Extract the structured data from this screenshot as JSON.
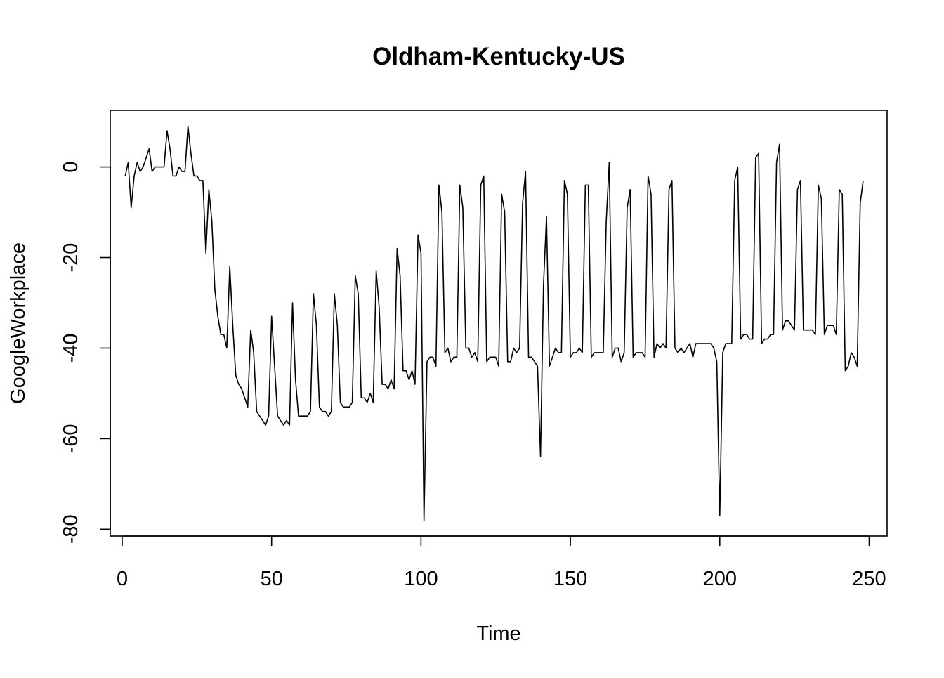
{
  "chart_data": {
    "type": "line",
    "title": "Oldham-Kentucky-US",
    "xlabel": "Time",
    "ylabel": "GoogleWorkplace",
    "xlim": [
      -4,
      256
    ],
    "ylim": [
      -81.5,
      12.5
    ],
    "x_ticks": [
      0,
      50,
      100,
      150,
      200,
      250
    ],
    "y_ticks": [
      -80,
      -60,
      -40,
      -20,
      0
    ],
    "grid": false,
    "legend": "none",
    "series": [
      {
        "color": "#000000",
        "x_start": 1,
        "values": [
          -2,
          1,
          -9,
          -2,
          1,
          -1,
          0,
          2,
          4,
          -1,
          0,
          0,
          0,
          0,
          8,
          4,
          -2,
          -2,
          0,
          -1,
          -1,
          9,
          3,
          -2,
          -2,
          -3,
          -3,
          -19,
          -5,
          -12,
          -27,
          -33,
          -37,
          -37,
          -40,
          -22,
          -35,
          -46,
          -48,
          -49,
          -51,
          -53,
          -36,
          -41,
          -54,
          -55,
          -56,
          -57,
          -55,
          -33,
          -44,
          -55,
          -56,
          -57,
          -56,
          -57,
          -30,
          -47,
          -55,
          -55,
          -55,
          -55,
          -54,
          -28,
          -35,
          -53,
          -54,
          -54,
          -55,
          -54,
          -28,
          -35,
          -52,
          -53,
          -53,
          -53,
          -52,
          -24,
          -28,
          -51,
          -51,
          -52,
          -50,
          -52,
          -23,
          -31,
          -48,
          -48,
          -49,
          -47,
          -49,
          -18,
          -24,
          -45,
          -45,
          -47,
          -45,
          -48,
          -15,
          -19,
          -78,
          -43,
          -42,
          -42,
          -44,
          -4,
          -10,
          -41,
          -40,
          -43,
          -42,
          -42,
          -4,
          -9,
          -40,
          -40,
          -42,
          -41,
          -43,
          -4,
          -2,
          -43,
          -42,
          -42,
          -42,
          -44,
          -6,
          -10,
          -43,
          -43,
          -40,
          -41,
          -40,
          -8,
          -1,
          -42,
          -42,
          -43,
          -44,
          -64,
          -26,
          -11,
          -44,
          -42,
          -40,
          -41,
          -41,
          -3,
          -6,
          -42,
          -41,
          -41,
          -40,
          -41,
          -4,
          -4,
          -42,
          -41,
          -41,
          -41,
          -41,
          -12,
          1,
          -42,
          -40,
          -40,
          -43,
          -41,
          -9,
          -5,
          -42,
          -41,
          -41,
          -41,
          -42,
          -2,
          -6,
          -42,
          -39,
          -40,
          -39,
          -40,
          -5,
          -3,
          -40,
          -41,
          -40,
          -41,
          -40,
          -39,
          -42,
          -39,
          -39,
          -39,
          -39,
          -39,
          -39,
          -40,
          -43,
          -77,
          -41,
          -39,
          -39,
          -39,
          -3,
          0,
          -38,
          -37,
          -37,
          -38,
          -38,
          2,
          3,
          -39,
          -38,
          -38,
          -37,
          -37,
          1,
          5,
          -36,
          -34,
          -34,
          -35,
          -36,
          -5,
          -3,
          -36,
          -36,
          -36,
          -36,
          -37,
          -4,
          -7,
          -37,
          -35,
          -35,
          -35,
          -37,
          -5,
          -6,
          -45,
          -44,
          -41,
          -42,
          -44,
          -8,
          -3
        ]
      }
    ]
  }
}
